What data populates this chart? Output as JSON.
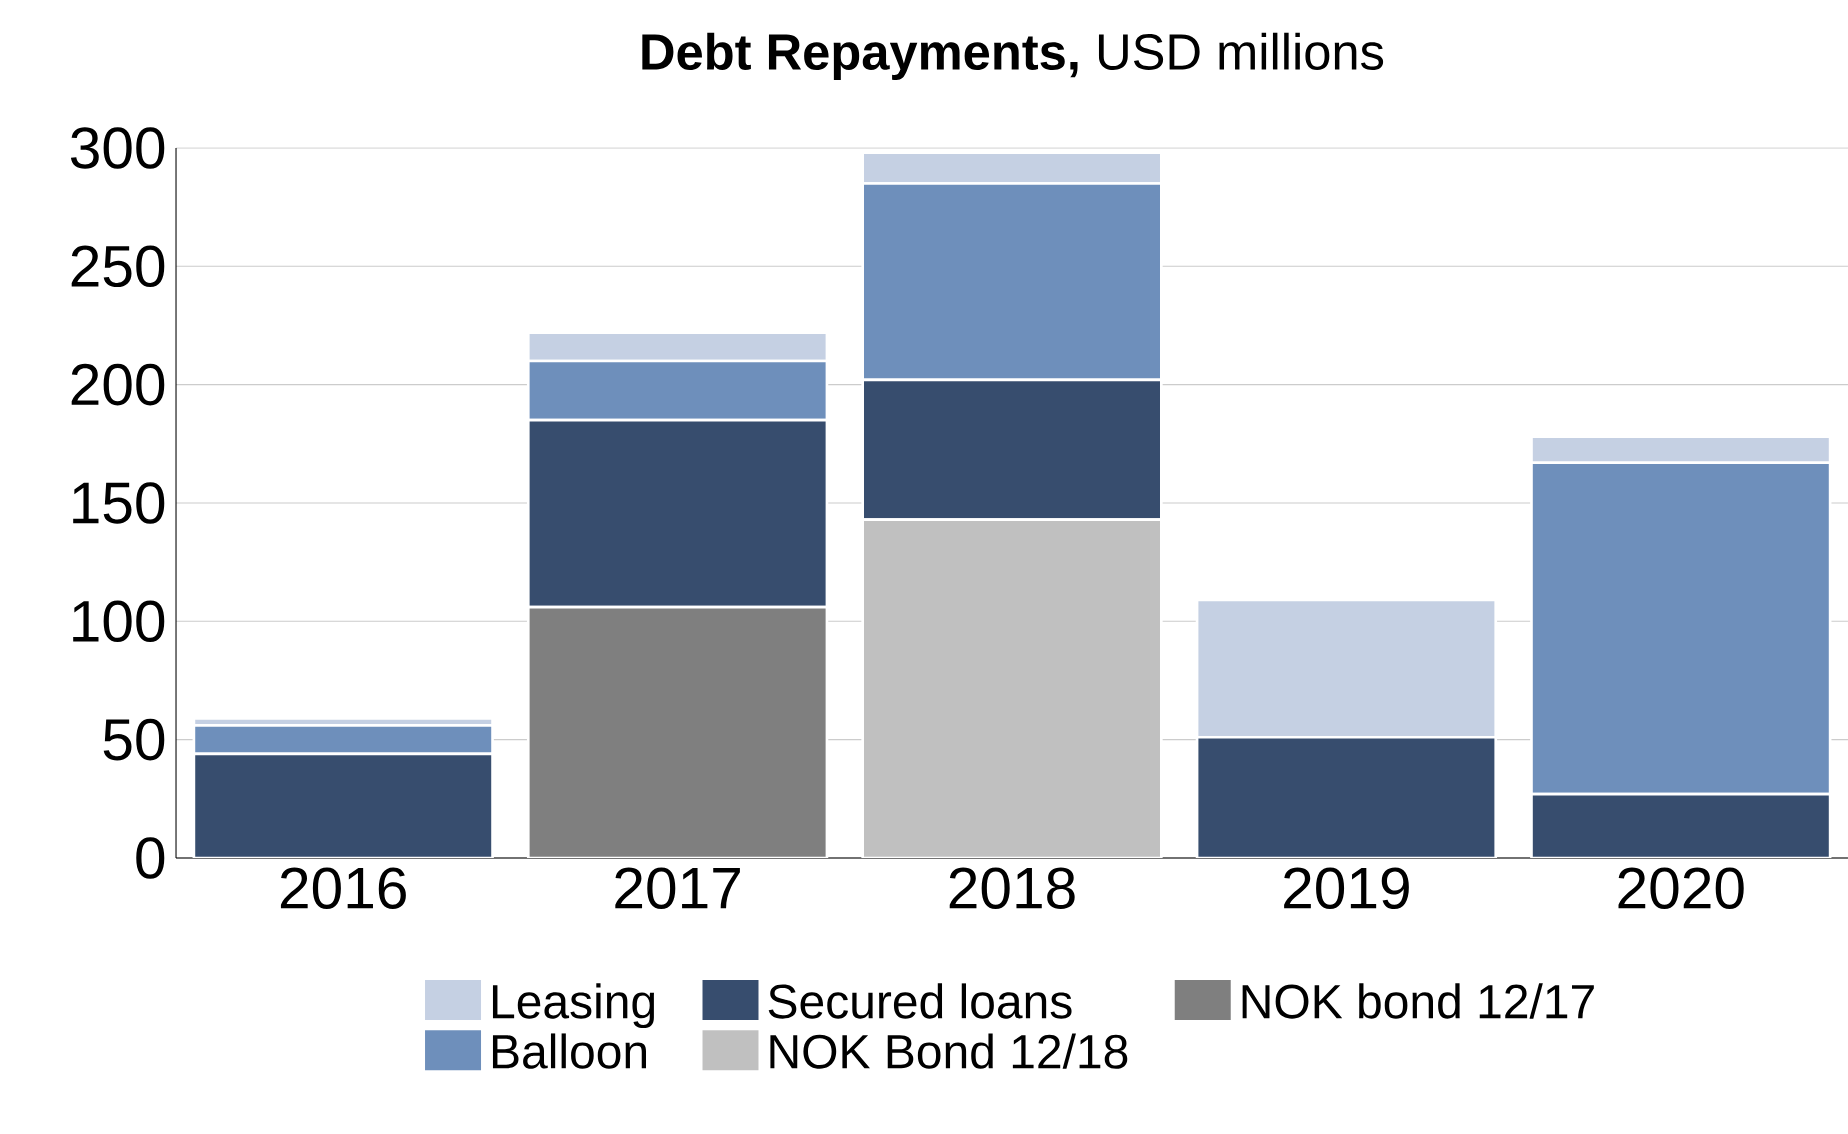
{
  "chart_data": {
    "type": "bar",
    "stacked": true,
    "title": "**Debt Repayments,** USD millions",
    "categories": [
      "2016",
      "2017",
      "2018",
      "2019",
      "2020"
    ],
    "series": [
      {
        "name": "NOK bond 12/17",
        "color": "#7f7f7f",
        "values": [
          0,
          106,
          0,
          0,
          0
        ]
      },
      {
        "name": "NOK Bond 12/18",
        "color": "#c0c0c0",
        "values": [
          0,
          0,
          143,
          0,
          0
        ]
      },
      {
        "name": "Secured loans",
        "color": "#374d6e",
        "values": [
          44,
          79,
          59,
          51,
          27
        ]
      },
      {
        "name": "Balloon",
        "color": "#6e8fbb",
        "values": [
          12,
          25,
          83,
          0,
          140
        ]
      },
      {
        "name": "Leasing",
        "color": "#c5d0e3",
        "values": [
          3,
          12,
          13,
          58,
          11
        ]
      }
    ],
    "ylim": [
      0,
      300
    ],
    "yticks": [
      0,
      50,
      100,
      150,
      200,
      250,
      300
    ],
    "grid": "y",
    "legend": "bottom"
  }
}
